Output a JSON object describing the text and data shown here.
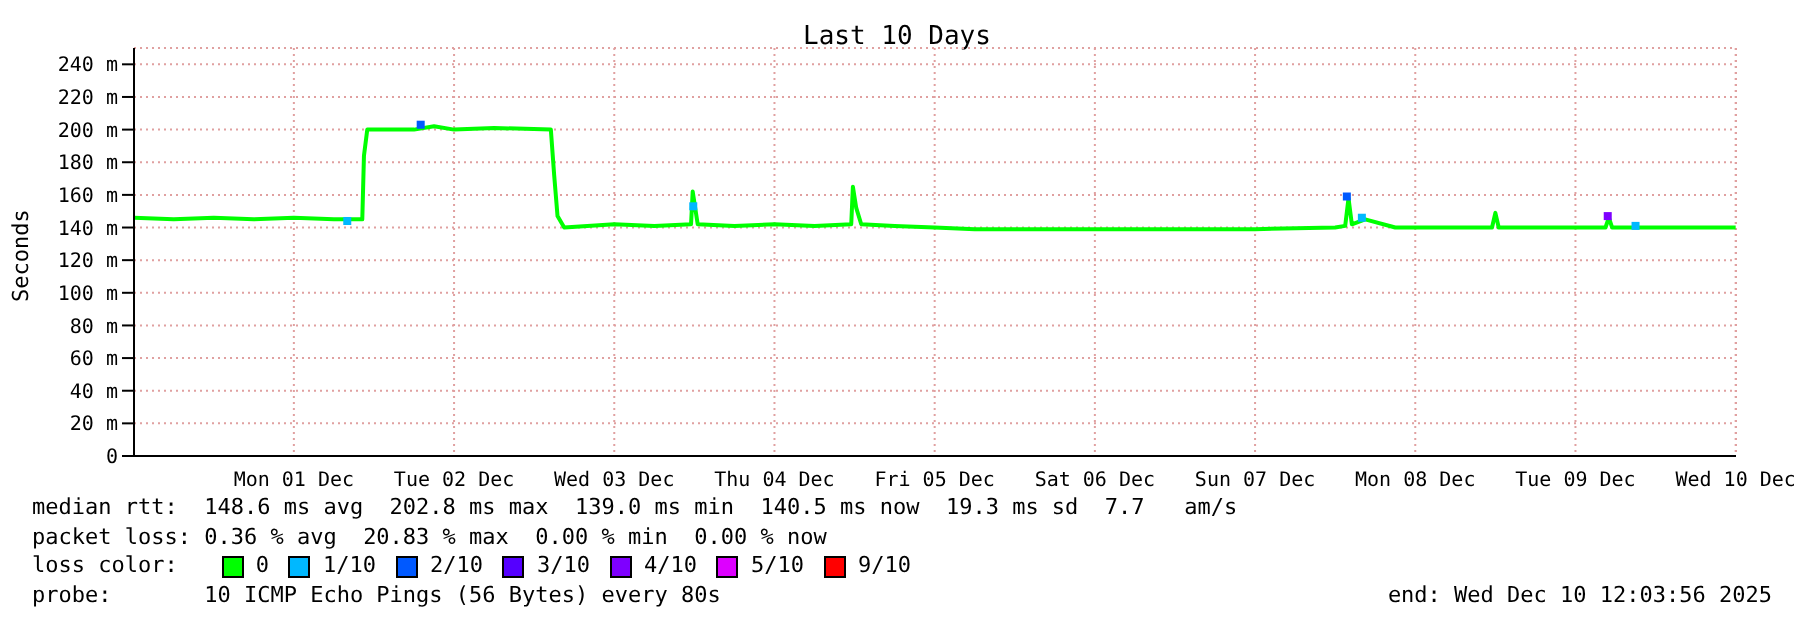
{
  "chart_data": {
    "type": "line",
    "title": "Last 10 Days",
    "ylabel": "Seconds",
    "xlim": [
      "2025-11-30T12:03",
      "2025-12-10T12:03"
    ],
    "xticks": [
      {
        "value": "2025-12-01T12:00",
        "label": "Mon 01 Dec"
      },
      {
        "value": "2025-12-02T12:00",
        "label": "Tue 02 Dec"
      },
      {
        "value": "2025-12-03T12:00",
        "label": "Wed 03 Dec"
      },
      {
        "value": "2025-12-04T12:00",
        "label": "Thu 04 Dec"
      },
      {
        "value": "2025-12-05T12:00",
        "label": "Fri 05 Dec"
      },
      {
        "value": "2025-12-06T12:00",
        "label": "Sat 06 Dec"
      },
      {
        "value": "2025-12-07T12:00",
        "label": "Sun 07 Dec"
      },
      {
        "value": "2025-12-08T12:00",
        "label": "Mon 08 Dec"
      },
      {
        "value": "2025-12-09T12:00",
        "label": "Tue 09 Dec"
      },
      {
        "value": "2025-12-10T12:00",
        "label": "Wed 10 Dec"
      }
    ],
    "ylim": [
      0,
      250
    ],
    "yticks": [
      0,
      {
        "value": 20,
        "label": "20 m"
      },
      {
        "value": 40,
        "label": "40 m"
      },
      {
        "value": 60,
        "label": "60 m"
      },
      {
        "value": 80,
        "label": "80 m"
      },
      {
        "value": 100,
        "label": "100 m"
      },
      {
        "value": 120,
        "label": "120 m"
      },
      {
        "value": 140,
        "label": "140 m"
      },
      {
        "value": 160,
        "label": "160 m"
      },
      {
        "value": 180,
        "label": "180 m"
      },
      {
        "value": 200,
        "label": "200 m"
      },
      {
        "value": 220,
        "label": "220 m"
      },
      {
        "value": 240,
        "label": "240 m"
      }
    ],
    "grid": true,
    "legend": "bottom",
    "legend_title": "loss color:",
    "line_style": "solid",
    "series": [
      {
        "name": "0",
        "color": "#00ff00",
        "marker": "none",
        "x": [
          "2025-11-30T12:03",
          "2025-11-30T18:00",
          "2025-12-01T00:00",
          "2025-12-01T06:00",
          "2025-12-01T12:00",
          "2025-12-01T18:00",
          "2025-12-01T22:15",
          "2025-12-01T22:30",
          "2025-12-01T23:00",
          "2025-12-02T06:00",
          "2025-12-02T09:00",
          "2025-12-02T12:00",
          "2025-12-02T18:00",
          "2025-12-03T02:30",
          "2025-12-03T03:00",
          "2025-12-03T03:30",
          "2025-12-03T04:30",
          "2025-12-03T12:00",
          "2025-12-03T18:00",
          "2025-12-03T23:30",
          "2025-12-03T23:45",
          "2025-12-04T00:30",
          "2025-12-04T06:00",
          "2025-12-04T12:00",
          "2025-12-04T18:00",
          "2025-12-04T23:30",
          "2025-12-04T23:45",
          "2025-12-05T00:15",
          "2025-12-05T01:00",
          "2025-12-05T06:00",
          "2025-12-05T12:00",
          "2025-12-05T18:00",
          "2025-12-06T00:00",
          "2025-12-06T12:00",
          "2025-12-07T00:00",
          "2025-12-07T12:00",
          "2025-12-08T00:00",
          "2025-12-08T01:30",
          "2025-12-08T02:00",
          "2025-12-08T02:30",
          "2025-12-08T04:30",
          "2025-12-08T09:00",
          "2025-12-08T18:00",
          "2025-12-08T23:30",
          "2025-12-09T00:00",
          "2025-12-09T00:30",
          "2025-12-09T12:00",
          "2025-12-09T16:30",
          "2025-12-09T17:00",
          "2025-12-09T17:30",
          "2025-12-10T00:00",
          "2025-12-10T12:00"
        ],
        "values": [
          146,
          145,
          146,
          145,
          146,
          145,
          145,
          184,
          200,
          200,
          202,
          200,
          201,
          200,
          172,
          147,
          140,
          142,
          141,
          142,
          162,
          142,
          141,
          142,
          141,
          142,
          165,
          152,
          142,
          141,
          140,
          139,
          139,
          139,
          139,
          139,
          140,
          141,
          158,
          142,
          145,
          140,
          140,
          140,
          149,
          140,
          140,
          140,
          146,
          140,
          140,
          140
        ]
      },
      {
        "name": "1/10",
        "color": "#00b8ff",
        "type": "scatter",
        "marker": "square",
        "x": [
          "2025-12-01T20:00",
          "2025-12-03T23:50",
          "2025-12-08T04:00",
          "2025-12-09T21:00"
        ],
        "values": [
          144,
          153,
          146,
          141
        ]
      },
      {
        "name": "2/10",
        "color": "#0059ff",
        "type": "scatter",
        "marker": "square",
        "x": [
          "2025-12-02T07:00",
          "2025-12-08T01:45"
        ],
        "values": [
          203,
          159
        ]
      },
      {
        "name": "3/10",
        "color": "#5500ff",
        "type": "scatter"
      },
      {
        "name": "4/10",
        "color": "#7e00ff",
        "type": "scatter",
        "marker": "square",
        "x": [
          "2025-12-09T16:50"
        ],
        "values": [
          147
        ]
      },
      {
        "name": "5/10",
        "color": "#dd00ff",
        "type": "scatter"
      },
      {
        "name": "9/10",
        "color": "#ff0000",
        "type": "scatter"
      }
    ],
    "annotations": [
      "median rtt:  148.6 ms avg  202.8 ms max  139.0 ms min  140.5 ms now  19.3 ms sd  7.7   am/s",
      "packet loss: 0.36 % avg  20.83 % max  0.00 % min  0.00 % now",
      "probe:       10 ICMP Echo Pings (56 Bytes) every 80s",
      "end: Wed Dec 10 12:03:56 2025"
    ]
  }
}
